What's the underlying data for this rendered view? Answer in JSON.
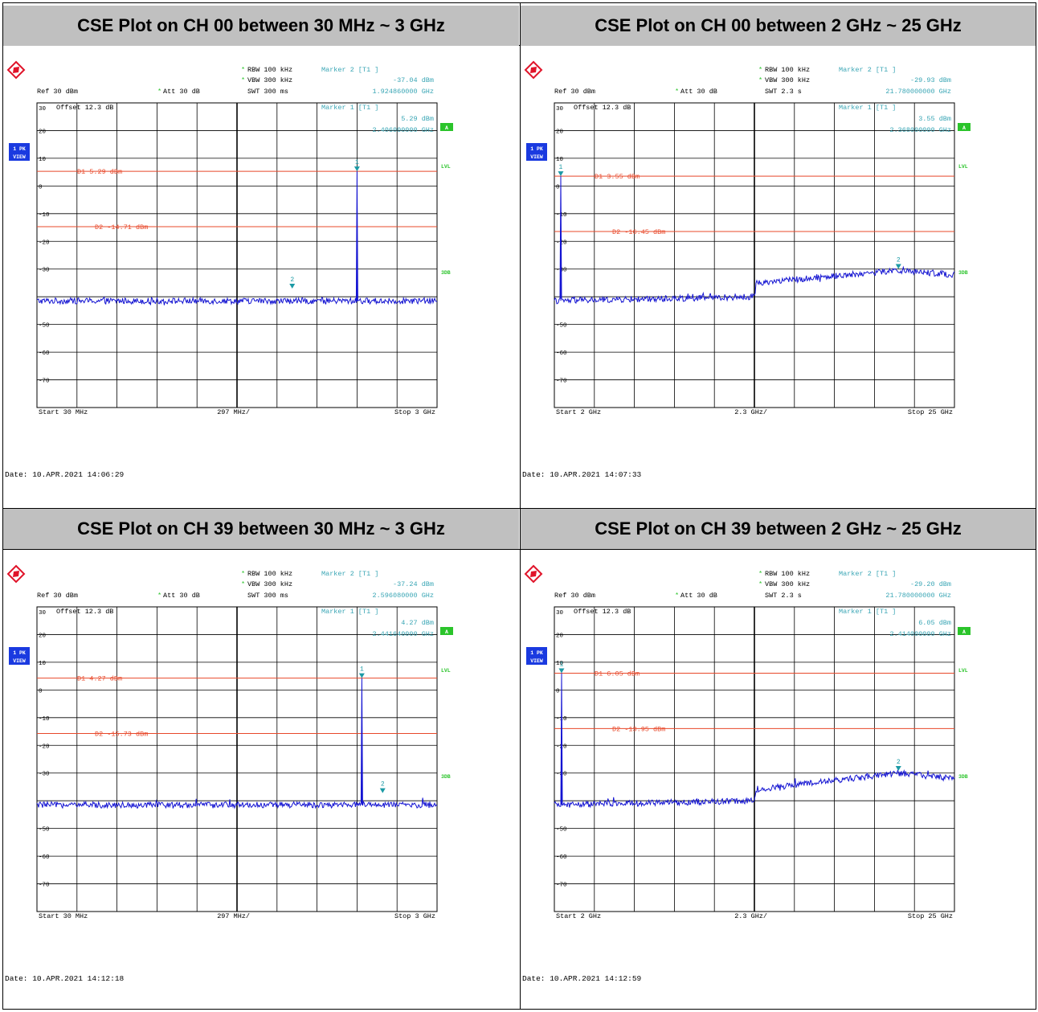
{
  "colors": {
    "trace": "#1414d2",
    "display_line": "#e8482a",
    "marker": "#1b9aa5",
    "info": "#3aa6b5",
    "grid": "#000000",
    "badge_green": "#2bc42b",
    "badge_blue": "#1a3ae0",
    "logo": "#e0142a",
    "title_bg": "#c0c0c0"
  },
  "panels": [
    {
      "title": "CSE Plot on CH 00 between 30 MHz ~ 3 GHz",
      "header": {
        "rbw": "RBW 100 kHz",
        "vbw": "VBW 300 kHz",
        "ref": "Ref  30 dBm",
        "att": "Att  30 dB",
        "swt": "SWT 300 ms"
      },
      "marker2": {
        "label": "Marker 2 [T1 ]",
        "level": "-37.04 dBm",
        "freq": "1.924860000 GHz"
      },
      "marker1": {
        "label": "Marker 1 [T1 ]",
        "level": "5.29 dBm",
        "freq": "2.406000000 GHz"
      },
      "offset": "Offset  12.3 dB",
      "side": {
        "pk": "1 PK",
        "view": "VIEW",
        "a": "A",
        "lvl": "LVL",
        "db3": "3DB"
      },
      "d1_label": "D1 5.29 dBm",
      "d2_label": "D2 -14.71 dBm",
      "start": "Start 30 MHz",
      "span": "297 MHz/",
      "stop": "Stop 3 GHz",
      "date": "Date: 10.APR.2021  14:06:29",
      "chart_data": {
        "type": "line",
        "x_unit": "MHz",
        "y_unit": "dBm",
        "xlim": [
          30,
          3000
        ],
        "ylim": [
          -80,
          30
        ],
        "y_ticks": [
          30,
          20,
          10,
          0,
          -10,
          -20,
          -30,
          -50,
          -60,
          -70
        ],
        "display_lines": [
          5.29,
          -14.71
        ],
        "noise_floor": [
          [
            30,
            -41.5
          ],
          [
            3000,
            -41.5
          ]
        ],
        "spur": {
          "x": 2406,
          "y": 5.29
        },
        "markers": [
          {
            "id": "1",
            "x": 2406,
            "y": 5.29
          },
          {
            "id": "2",
            "x": 1924.86,
            "y": -37.04
          }
        ]
      }
    },
    {
      "title": "CSE Plot on CH 00 between 2 GHz ~ 25 GHz",
      "header": {
        "rbw": "RBW 100 kHz",
        "vbw": "VBW 300 kHz",
        "ref": "Ref  30 dBm",
        "att": "Att  30 dB",
        "swt": "SWT 2.3 s"
      },
      "marker2": {
        "label": "Marker 2 [T1 ]",
        "level": "-29.93 dBm",
        "freq": "21.780000000 GHz"
      },
      "marker1": {
        "label": "Marker 1 [T1 ]",
        "level": "3.55 dBm",
        "freq": "2.368000000 GHz"
      },
      "offset": "Offset  12.3 dB",
      "side": {
        "pk": "1 PK",
        "view": "VIEW",
        "a": "A",
        "lvl": "LVL",
        "db3": "3DB"
      },
      "d1_label": "D1 3.55 dBm",
      "d2_label": "D2 -16.45 dBm",
      "start": "Start 2 GHz",
      "span": "2.3 GHz/",
      "stop": "Stop 25 GHz",
      "date": "Date: 10.APR.2021  14:07:33",
      "chart_data": {
        "type": "line",
        "x_unit": "GHz",
        "y_unit": "dBm",
        "xlim": [
          2,
          25
        ],
        "ylim": [
          -80,
          30
        ],
        "y_ticks": [
          30,
          20,
          10,
          0,
          -10,
          -20,
          -30,
          -50,
          -60,
          -70
        ],
        "display_lines": [
          3.55,
          -16.45
        ],
        "noise_floor": [
          [
            2,
            -41.5
          ],
          [
            13.5,
            -40
          ],
          [
            13.6,
            -35
          ],
          [
            21.78,
            -30.5
          ],
          [
            25,
            -32
          ]
        ],
        "spur": {
          "x": 2.368,
          "y": 3.55
        },
        "markers": [
          {
            "id": "1",
            "x": 2.368,
            "y": 3.55
          },
          {
            "id": "2",
            "x": 21.78,
            "y": -29.93
          }
        ]
      }
    },
    {
      "title": "CSE Plot on CH 39 between 30 MHz ~ 3 GHz",
      "header": {
        "rbw": "RBW 100 kHz",
        "vbw": "VBW 300 kHz",
        "ref": "Ref  30 dBm",
        "att": "Att  30 dB",
        "swt": "SWT 300 ms"
      },
      "marker2": {
        "label": "Marker 2 [T1 ]",
        "level": "-37.24 dBm",
        "freq": "2.596080000 GHz"
      },
      "marker1": {
        "label": "Marker 1 [T1 ]",
        "level": "4.27 dBm",
        "freq": "2.441640000 GHz"
      },
      "offset": "Offset  12.3 dB",
      "side": {
        "pk": "1 PK",
        "view": "VIEW",
        "a": "A",
        "lvl": "LVL",
        "db3": "3DB"
      },
      "d1_label": "D1 4.27 dBm",
      "d2_label": "D2 -15.73 dBm",
      "start": "Start 30 MHz",
      "span": "297 MHz/",
      "stop": "Stop 3 GHz",
      "date": "Date: 10.APR.2021  14:12:18",
      "chart_data": {
        "type": "line",
        "x_unit": "MHz",
        "y_unit": "dBm",
        "xlim": [
          30,
          3000
        ],
        "ylim": [
          -80,
          30
        ],
        "y_ticks": [
          30,
          20,
          10,
          0,
          -10,
          -20,
          -30,
          -50,
          -60,
          -70
        ],
        "display_lines": [
          4.27,
          -15.73
        ],
        "noise_floor": [
          [
            30,
            -41.5
          ],
          [
            3000,
            -41.5
          ]
        ],
        "spur": {
          "x": 2441.64,
          "y": 4.27
        },
        "markers": [
          {
            "id": "1",
            "x": 2441.64,
            "y": 4.27
          },
          {
            "id": "2",
            "x": 2596.08,
            "y": -37.24
          }
        ]
      }
    },
    {
      "title": "CSE Plot on CH 39 between 2 GHz ~ 25 GHz",
      "header": {
        "rbw": "RBW 100 kHz",
        "vbw": "VBW 300 kHz",
        "ref": "Ref  30 dBm",
        "att": "Att  30 dB",
        "swt": "SWT 2.3 s"
      },
      "marker2": {
        "label": "Marker 2 [T1 ]",
        "level": "-29.20 dBm",
        "freq": "21.780000000 GHz"
      },
      "marker1": {
        "label": "Marker 1 [T1 ]",
        "level": "6.05 dBm",
        "freq": "2.414000000 GHz"
      },
      "offset": "Offset  12.3 dB",
      "side": {
        "pk": "1 PK",
        "view": "VIEW",
        "a": "A",
        "lvl": "LVL",
        "db3": "3DB"
      },
      "d1_label": "D1 6.05 dBm",
      "d2_label": "D2 -13.95 dBm",
      "start": "Start 2 GHz",
      "span": "2.3 GHz/",
      "stop": "Stop 25 GHz",
      "date": "Date: 10.APR.2021  14:12:59",
      "chart_data": {
        "type": "line",
        "x_unit": "GHz",
        "y_unit": "dBm",
        "xlim": [
          2,
          25
        ],
        "ylim": [
          -80,
          30
        ],
        "y_ticks": [
          30,
          20,
          10,
          0,
          -10,
          -20,
          -30,
          -50,
          -60,
          -70
        ],
        "display_lines": [
          6.05,
          -13.95
        ],
        "noise_floor": [
          [
            2,
            -41.5
          ],
          [
            13.5,
            -40
          ],
          [
            13.6,
            -36
          ],
          [
            21.78,
            -30
          ],
          [
            25,
            -32
          ]
        ],
        "spur": {
          "x": 2.414,
          "y": 6.05
        },
        "markers": [
          {
            "id": "1",
            "x": 2.414,
            "y": 6.05
          },
          {
            "id": "2",
            "x": 21.78,
            "y": -29.2
          }
        ]
      }
    }
  ]
}
